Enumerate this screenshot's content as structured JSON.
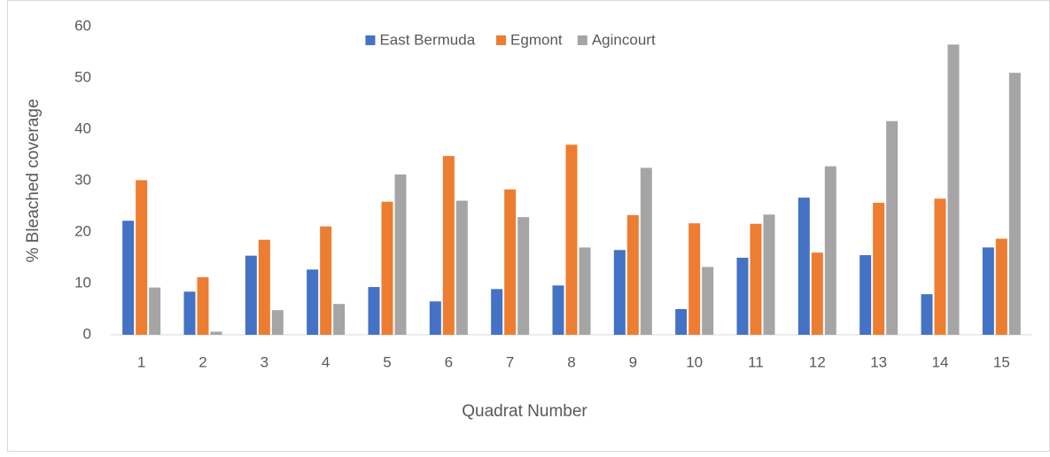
{
  "chart_data": {
    "type": "bar",
    "x_label": "Quadrat Number",
    "y_label": "% Bleached coverage",
    "categories": [
      "1",
      "2",
      "3",
      "4",
      "5",
      "6",
      "7",
      "8",
      "9",
      "10",
      "11",
      "12",
      "13",
      "14",
      "15"
    ],
    "series": [
      {
        "name": "East Bermuda",
        "color": "#4472c4",
        "values": [
          22.2,
          8.4,
          15.4,
          12.7,
          9.3,
          6.5,
          8.9,
          9.6,
          16.5,
          5.0,
          15.0,
          26.7,
          15.5,
          7.9,
          17.0
        ]
      },
      {
        "name": "Egmont",
        "color": "#ed7d31",
        "values": [
          30.1,
          11.2,
          18.5,
          21.1,
          25.9,
          34.8,
          28.3,
          37.0,
          23.3,
          21.7,
          21.6,
          16.0,
          25.7,
          26.5,
          18.7
        ]
      },
      {
        "name": "Agincourt",
        "color": "#a5a5a5",
        "values": [
          9.2,
          0.6,
          4.8,
          6.0,
          31.2,
          26.1,
          22.9,
          17.0,
          32.5,
          13.2,
          23.4,
          32.8,
          41.6,
          56.5,
          51.0
        ]
      }
    ],
    "ylim": [
      0,
      60
    ],
    "yticks": [
      0,
      10,
      20,
      30,
      40,
      50,
      60
    ],
    "grid": false,
    "legend": "top"
  }
}
